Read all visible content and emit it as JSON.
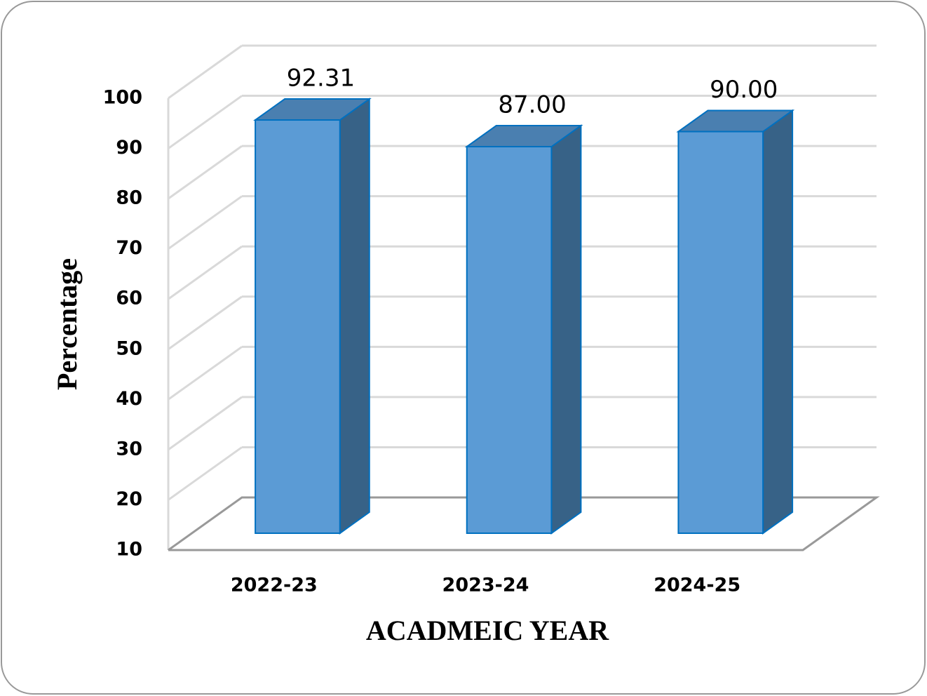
{
  "chart_data": {
    "type": "bar3d",
    "x_label": "ACADMEIC YEAR",
    "y_label": "Percentage",
    "categories": [
      "2022-23",
      "2023-24",
      "2024-25"
    ],
    "values": [
      92.31,
      87,
      90
    ],
    "value_labels": [
      "92.31",
      "87.00",
      "90.00"
    ],
    "color": "#5b9bd5",
    "ylim": [
      10,
      100
    ],
    "yticks": [
      10,
      20,
      30,
      40,
      50,
      60,
      70,
      80,
      90,
      100
    ],
    "grid": true
  }
}
